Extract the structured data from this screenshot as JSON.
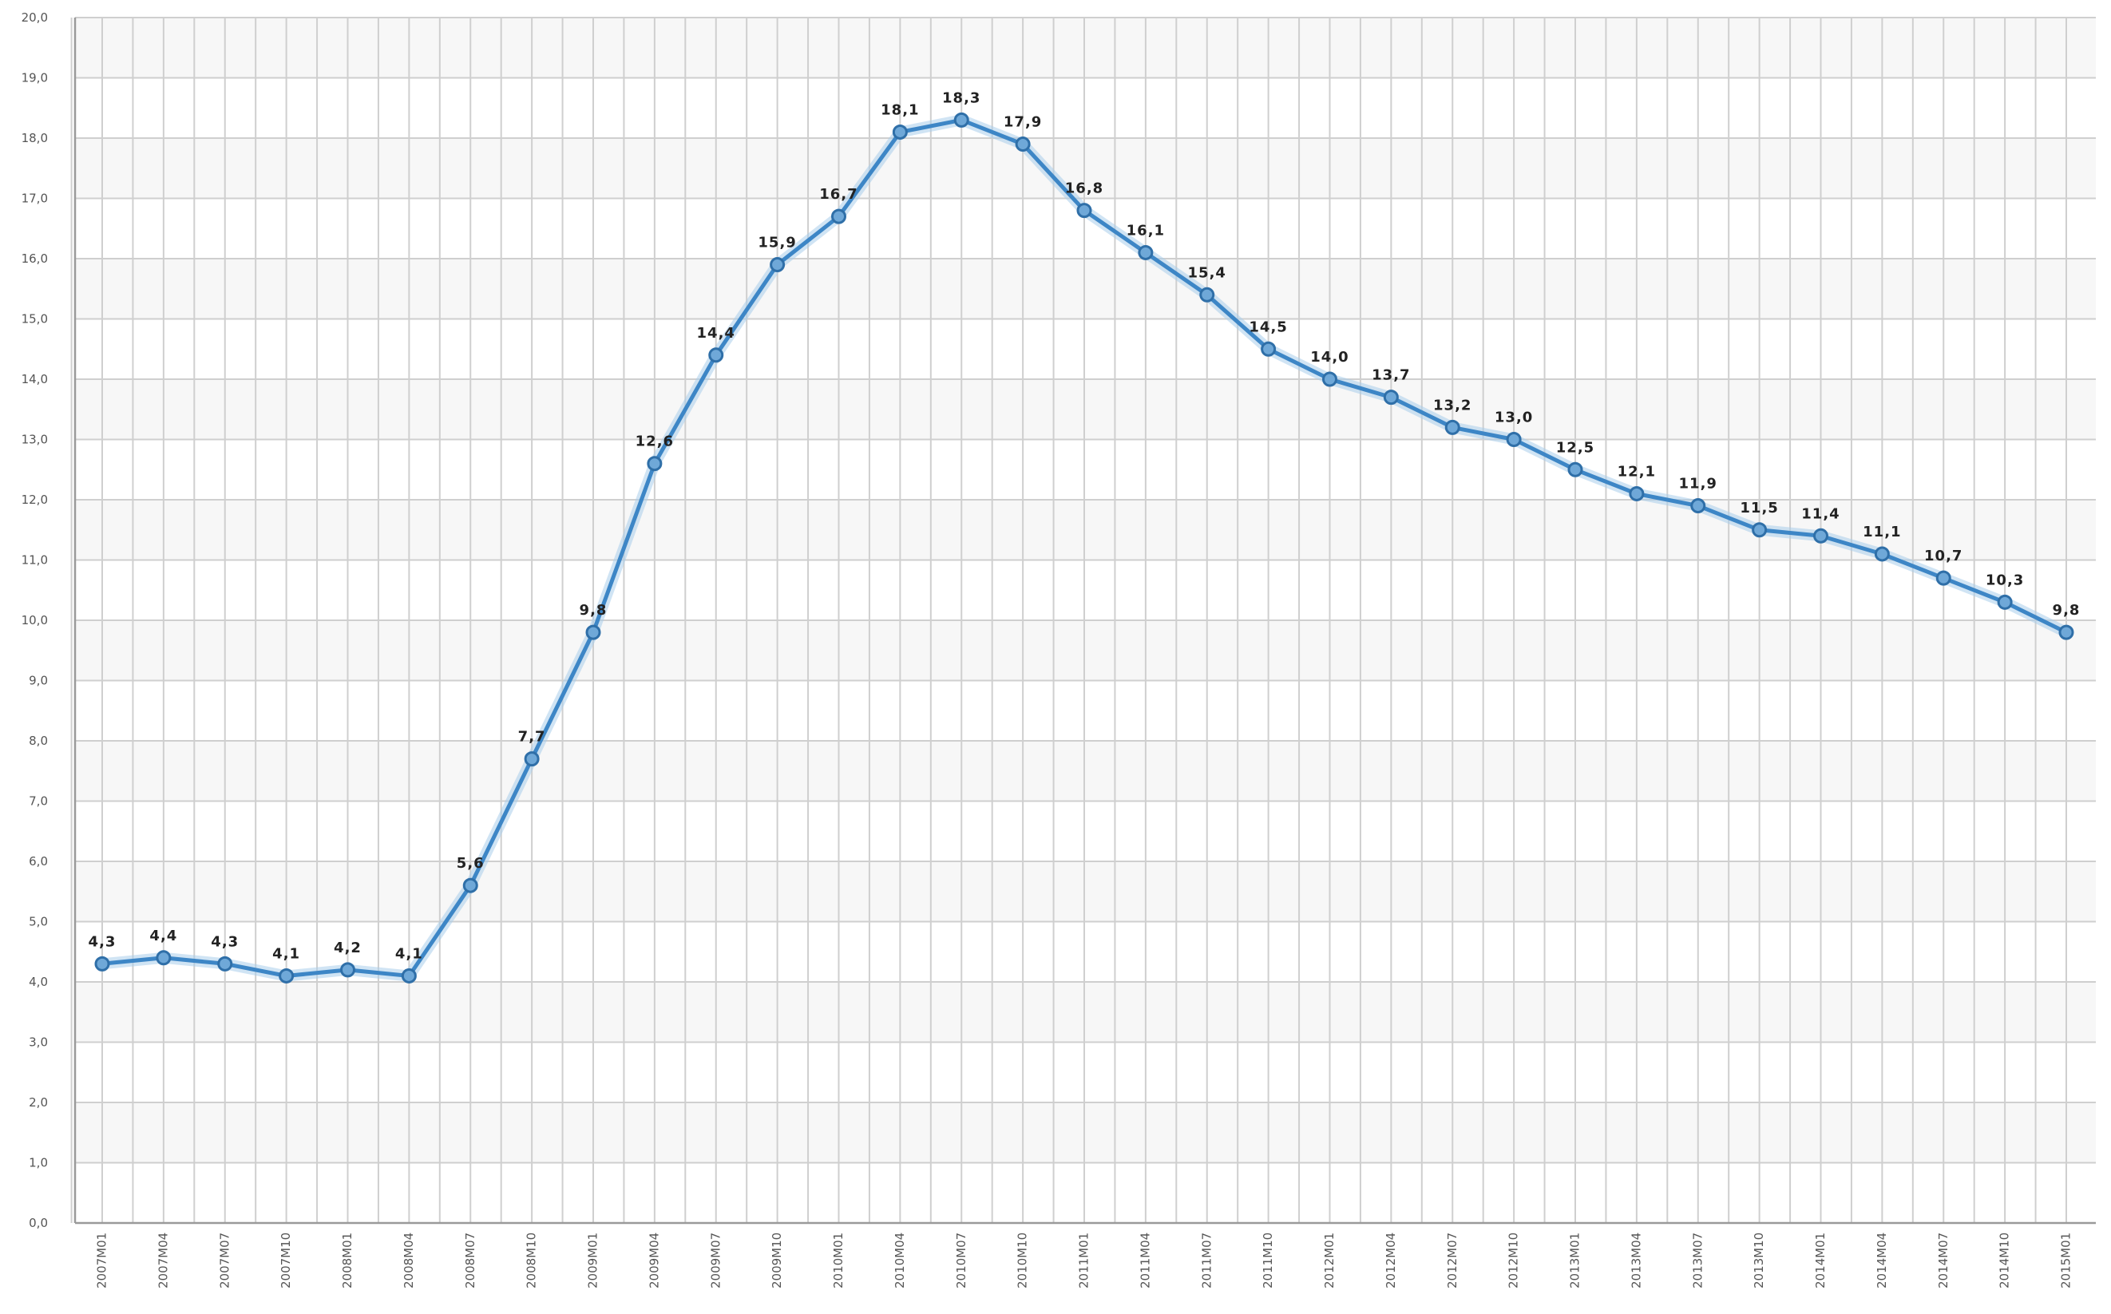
{
  "chart_data": {
    "type": "line",
    "title": "",
    "xlabel": "",
    "ylabel": "",
    "ylim": [
      0,
      20
    ],
    "y_ticks": [
      "0,0",
      "1,0",
      "2,0",
      "3,0",
      "4,0",
      "5,0",
      "6,0",
      "7,0",
      "8,0",
      "9,0",
      "10,0",
      "11,0",
      "12,0",
      "13,0",
      "14,0",
      "15,0",
      "16,0",
      "17,0",
      "18,0",
      "19,0",
      "20,0"
    ],
    "categories": [
      "2007M01",
      "2007M04",
      "2007M07",
      "2007M10",
      "2008M01",
      "2008M04",
      "2008M07",
      "2008M10",
      "2009M01",
      "2009M04",
      "2009M07",
      "2009M10",
      "2010M01",
      "2010M04",
      "2010M07",
      "2010M10",
      "2011M01",
      "2011M04",
      "2011M07",
      "2011M10",
      "2012M01",
      "2012M04",
      "2012M07",
      "2012M10",
      "2013M01",
      "2013M04",
      "2013M07",
      "2013M10",
      "2014M01",
      "2014M04",
      "2014M07",
      "2014M10",
      "2015M01"
    ],
    "series": [
      {
        "values": [
          4.3,
          4.4,
          4.3,
          4.1,
          4.2,
          4.1,
          5.6,
          7.7,
          9.8,
          12.6,
          14.4,
          15.9,
          16.7,
          18.1,
          18.3,
          17.9,
          16.8,
          16.1,
          15.4,
          14.5,
          14.0,
          13.7,
          13.2,
          13.0,
          12.5,
          12.1,
          11.9,
          11.5,
          11.4,
          11.1,
          10.7,
          10.3,
          9.8
        ],
        "labels": [
          "4,3",
          "4,4",
          "4,3",
          "4,1",
          "4,2",
          "4,1",
          "5,6",
          "7,7",
          "9,8",
          "12,6",
          "14,4",
          "15,9",
          "16,7",
          "18,1",
          "18,3",
          "17,9",
          "16,8",
          "16,1",
          "15,4",
          "14,5",
          "14,0",
          "13,7",
          "13,2",
          "13,0",
          "12,5",
          "12,1",
          "11,9",
          "11,5",
          "11,4",
          "11,1",
          "10,7",
          "10,3",
          "9,8"
        ]
      }
    ],
    "grid": true,
    "legend": "none",
    "colors": {
      "line": "#3d86c6",
      "marker_fill": "#6fa8d8",
      "marker_stroke": "#2f6fa8",
      "grid": "#cfcfcf",
      "band": "#f7f7f7",
      "axis": "#9a9a9a"
    }
  }
}
